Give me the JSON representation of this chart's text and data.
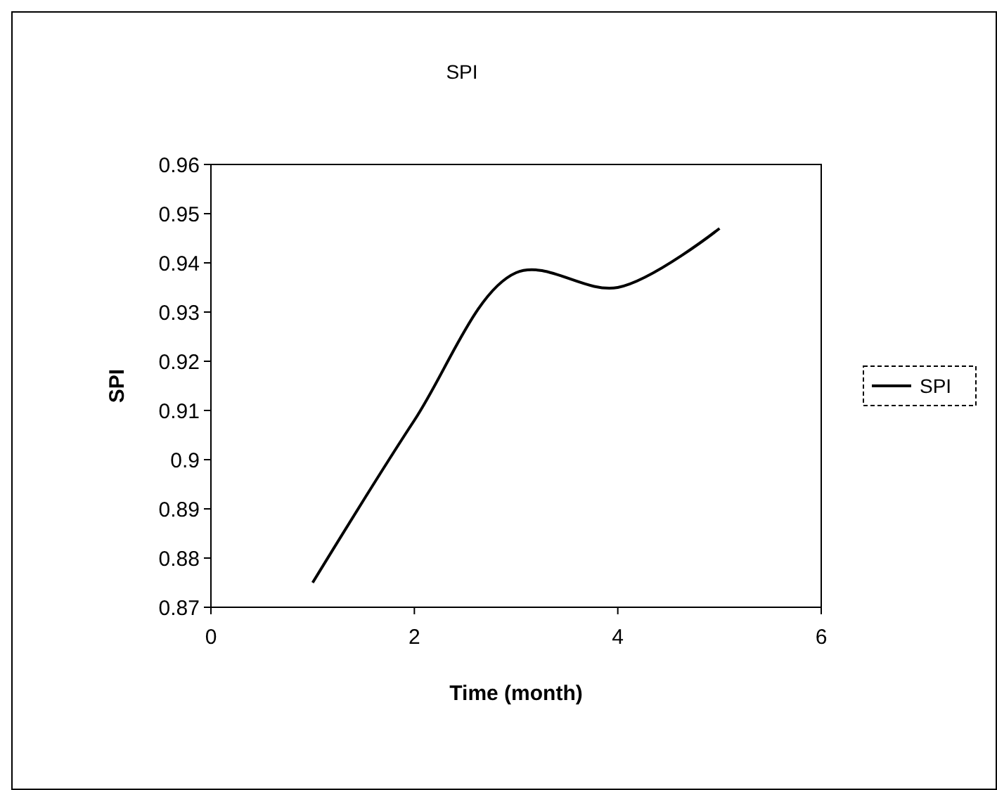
{
  "chart_data": {
    "type": "line",
    "title": "SPI",
    "xlabel": "Time (month)",
    "ylabel": "SPI",
    "x": [
      1,
      2,
      3,
      4,
      5
    ],
    "series": [
      {
        "name": "SPI",
        "color": "#000000",
        "values": [
          0.875,
          0.908,
          0.938,
          0.935,
          0.947
        ]
      }
    ],
    "xlim": [
      0,
      6
    ],
    "xticks": [
      0,
      2,
      4,
      6
    ],
    "ylim": [
      0.87,
      0.96
    ],
    "yticks": [
      0.87,
      0.88,
      0.89,
      0.9,
      0.91,
      0.92,
      0.93,
      0.94,
      0.95,
      0.96
    ],
    "grid": false,
    "legend": "right",
    "marker": "none",
    "line_style": "solid"
  }
}
